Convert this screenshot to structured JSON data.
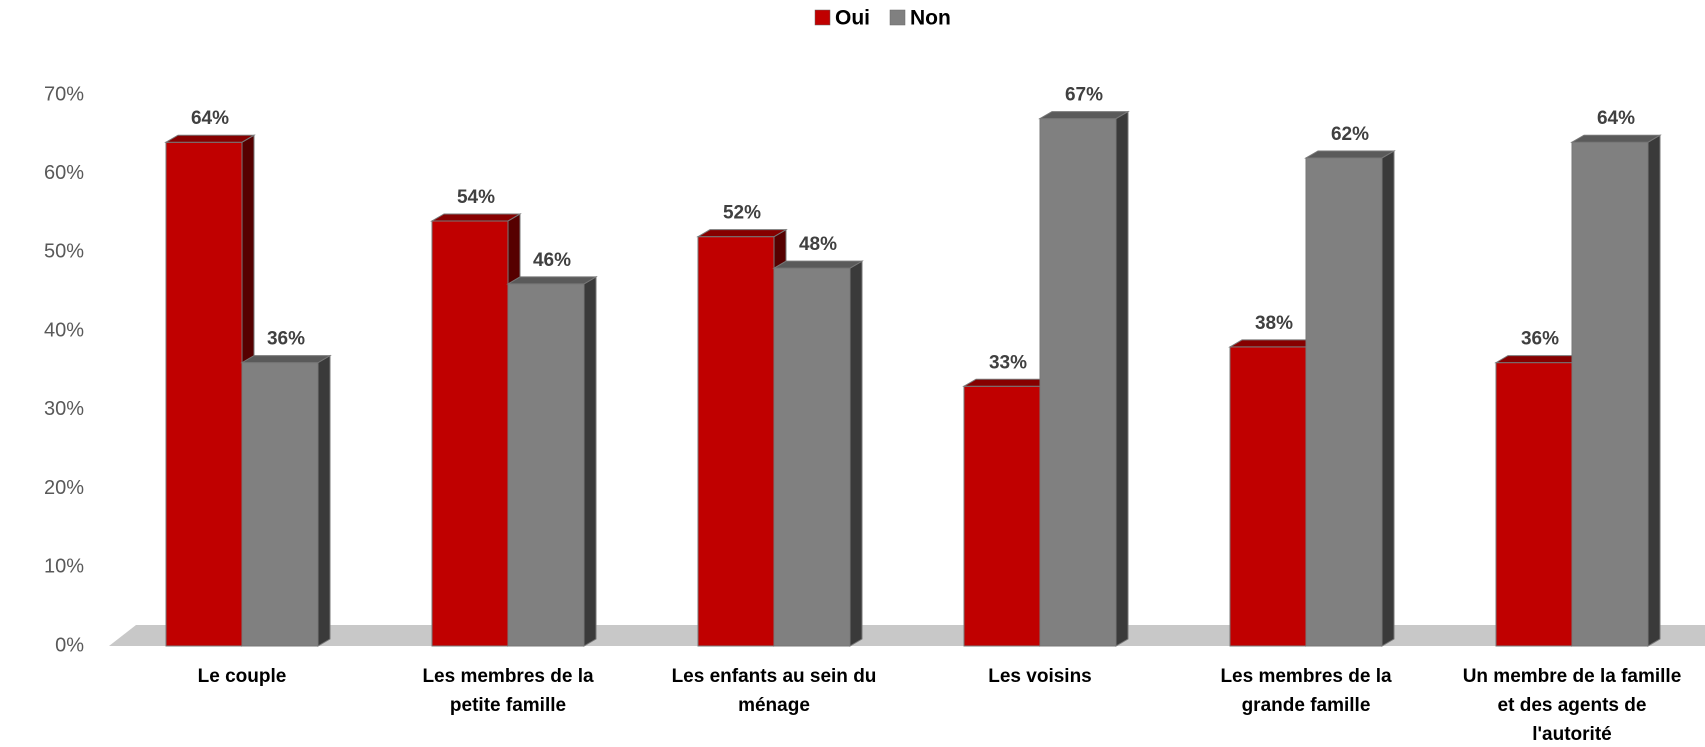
{
  "chart_data": {
    "type": "bar3d",
    "categories": [
      "Le couple",
      "Les membres de la petite famille",
      "Les enfants au sein du ménage",
      "Les voisins",
      "Les membres de la grande famille",
      "Un membre de la famille et des agents de l'autorité"
    ],
    "series": [
      {
        "name": "Oui",
        "color": "#c00000",
        "values": [
          64,
          54,
          52,
          33,
          38,
          36
        ],
        "value_labels": [
          "64%",
          "54%",
          "52%",
          "33%",
          "38%",
          "36%"
        ]
      },
      {
        "name": "Non",
        "color": "#808080",
        "values": [
          36,
          46,
          48,
          67,
          62,
          64
        ],
        "value_labels": [
          "36%",
          "46%",
          "48%",
          "67%",
          "62%",
          "64%"
        ]
      }
    ],
    "ylim": [
      0,
      70
    ],
    "yticks": [
      {
        "value": 0,
        "label": "0%"
      },
      {
        "value": 10,
        "label": "10%"
      },
      {
        "value": 20,
        "label": "20%"
      },
      {
        "value": 30,
        "label": "30%"
      },
      {
        "value": 40,
        "label": "40%"
      },
      {
        "value": 50,
        "label": "50%"
      },
      {
        "value": 60,
        "label": "60%"
      },
      {
        "value": 70,
        "label": "70%"
      }
    ],
    "legend": "top"
  }
}
